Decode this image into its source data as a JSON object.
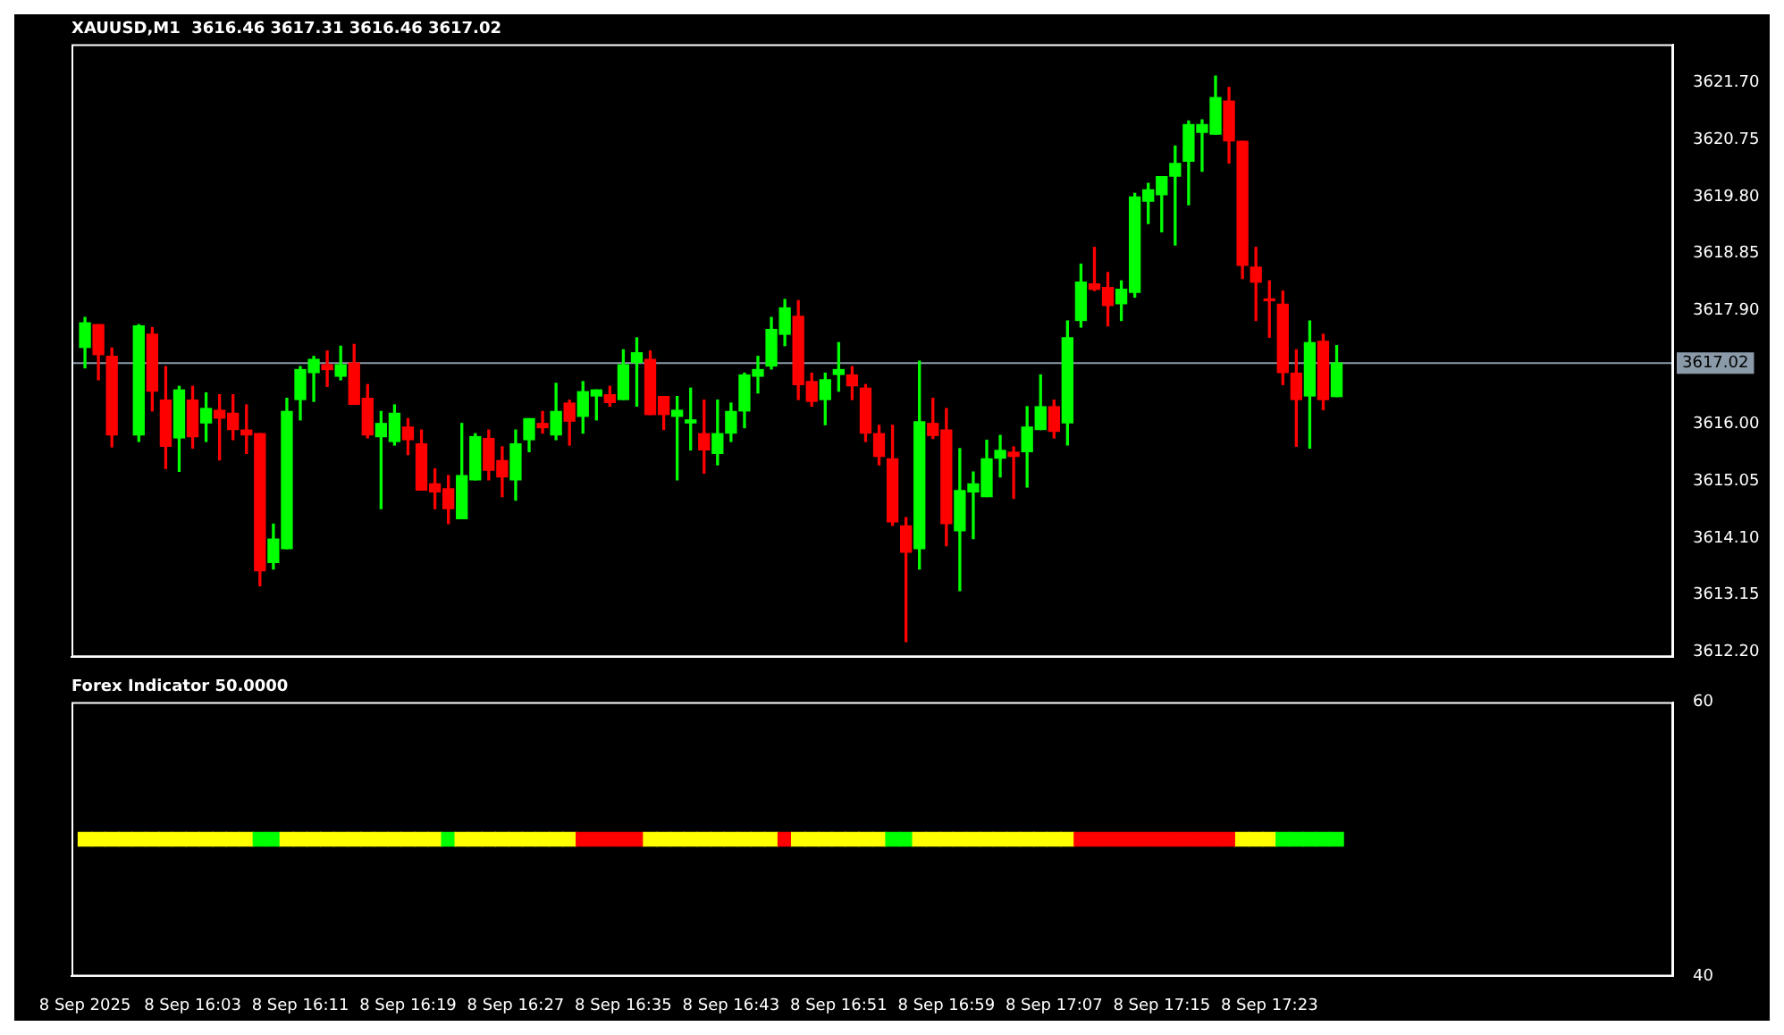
{
  "chart_data": [
    {
      "type": "candlestick",
      "title": "XAUUSD,M1  3616.46 3617.31 3616.46 3617.02",
      "x": [
        "2025-09-08T15:55",
        "2025-09-08T15:56",
        "2025-09-08T15:57",
        "2025-09-08T15:59",
        "2025-09-08T16:00",
        "2025-09-08T16:01",
        "2025-09-08T16:02",
        "2025-09-08T16:03",
        "2025-09-08T16:04",
        "2025-09-08T16:05",
        "2025-09-08T16:06",
        "2025-09-08T16:07",
        "2025-09-08T16:08",
        "2025-09-08T16:09",
        "2025-09-08T16:10",
        "2025-09-08T16:11",
        "2025-09-08T16:12",
        "2025-09-08T16:13",
        "2025-09-08T16:14",
        "2025-09-08T16:15",
        "2025-09-08T16:16",
        "2025-09-08T16:17",
        "2025-09-08T16:18",
        "2025-09-08T16:19",
        "2025-09-08T16:20",
        "2025-09-08T16:21",
        "2025-09-08T16:22",
        "2025-09-08T16:23",
        "2025-09-08T16:24",
        "2025-09-08T16:25",
        "2025-09-08T16:26",
        "2025-09-08T16:27",
        "2025-09-08T16:28",
        "2025-09-08T16:29",
        "2025-09-08T16:30",
        "2025-09-08T16:31",
        "2025-09-08T16:32",
        "2025-09-08T16:33",
        "2025-09-08T16:34",
        "2025-09-08T16:35",
        "2025-09-08T16:36",
        "2025-09-08T16:37",
        "2025-09-08T16:38",
        "2025-09-08T16:39",
        "2025-09-08T16:40",
        "2025-09-08T16:41",
        "2025-09-08T16:42",
        "2025-09-08T16:43",
        "2025-09-08T16:44",
        "2025-09-08T16:45",
        "2025-09-08T16:46",
        "2025-09-08T16:47",
        "2025-09-08T16:48",
        "2025-09-08T16:49",
        "2025-09-08T16:50",
        "2025-09-08T16:51",
        "2025-09-08T16:52",
        "2025-09-08T16:53",
        "2025-09-08T16:54",
        "2025-09-08T16:55",
        "2025-09-08T16:56",
        "2025-09-08T16:57",
        "2025-09-08T16:58",
        "2025-09-08T16:59",
        "2025-09-08T17:00",
        "2025-09-08T17:01",
        "2025-09-08T17:02",
        "2025-09-08T17:03",
        "2025-09-08T17:04",
        "2025-09-08T17:05",
        "2025-09-08T17:06",
        "2025-09-08T17:07",
        "2025-09-08T17:08",
        "2025-09-08T17:09",
        "2025-09-08T17:10",
        "2025-09-08T17:11",
        "2025-09-08T17:12",
        "2025-09-08T17:13",
        "2025-09-08T17:14",
        "2025-09-08T17:15",
        "2025-09-08T17:16",
        "2025-09-08T17:17",
        "2025-09-08T17:18",
        "2025-09-08T17:19",
        "2025-09-08T17:20",
        "2025-09-08T17:21",
        "2025-09-08T17:22",
        "2025-09-08T17:23",
        "2025-09-08T17:24",
        "2025-09-08T17:25",
        "2025-09-08T17:26",
        "2025-09-08T17:27",
        "2025-09-08T17:28"
      ],
      "ohlc": [
        [
          3617.28,
          3617.78,
          3616.94,
          3617.69
        ],
        [
          3617.66,
          3617.66,
          3616.74,
          3617.16
        ],
        [
          3617.13,
          3617.27,
          3615.62,
          3615.82
        ],
        [
          3615.82,
          3617.66,
          3615.71,
          3617.64
        ],
        [
          3617.5,
          3617.61,
          3616.22,
          3616.55
        ],
        [
          3616.4,
          3616.96,
          3615.26,
          3615.63
        ],
        [
          3615.77,
          3616.63,
          3615.21,
          3616.57
        ],
        [
          3616.4,
          3616.63,
          3615.6,
          3615.79
        ],
        [
          3616.02,
          3616.52,
          3615.71,
          3616.26
        ],
        [
          3616.23,
          3616.49,
          3615.4,
          3616.1
        ],
        [
          3616.18,
          3616.49,
          3615.74,
          3615.91
        ],
        [
          3615.9,
          3616.32,
          3615.51,
          3615.82
        ],
        [
          3615.84,
          3615.84,
          3613.3,
          3613.55
        ],
        [
          3613.69,
          3614.33,
          3613.58,
          3614.08
        ],
        [
          3613.92,
          3616.43,
          3613.92,
          3616.21
        ],
        [
          3616.41,
          3616.96,
          3616.07,
          3616.91
        ],
        [
          3616.86,
          3617.13,
          3616.38,
          3617.08
        ],
        [
          3616.99,
          3617.22,
          3616.63,
          3616.91
        ],
        [
          3616.8,
          3617.3,
          3616.74,
          3616.99
        ],
        [
          3617.02,
          3617.33,
          3616.33,
          3616.33
        ],
        [
          3616.43,
          3616.66,
          3615.77,
          3615.82
        ],
        [
          3615.79,
          3616.21,
          3614.59,
          3616.01
        ],
        [
          3615.71,
          3616.32,
          3615.65,
          3616.18
        ],
        [
          3615.95,
          3616.09,
          3615.49,
          3615.74
        ],
        [
          3615.67,
          3615.9,
          3614.9,
          3614.9
        ],
        [
          3615.0,
          3615.25,
          3614.59,
          3614.87
        ],
        [
          3614.92,
          3615.14,
          3614.34,
          3614.59
        ],
        [
          3614.42,
          3616.01,
          3614.42,
          3615.14
        ],
        [
          3615.07,
          3615.84,
          3615.07,
          3615.79
        ],
        [
          3615.76,
          3615.9,
          3615.07,
          3615.23
        ],
        [
          3615.39,
          3615.62,
          3614.79,
          3615.12
        ],
        [
          3615.07,
          3615.9,
          3614.73,
          3615.67
        ],
        [
          3615.74,
          3616.09,
          3615.54,
          3616.09
        ],
        [
          3616.01,
          3616.21,
          3615.85,
          3615.94
        ],
        [
          3615.82,
          3616.68,
          3615.74,
          3616.21
        ],
        [
          3616.35,
          3616.4,
          3615.65,
          3616.05
        ],
        [
          3616.13,
          3616.71,
          3615.85,
          3616.54
        ],
        [
          3616.47,
          3616.57,
          3616.07,
          3616.57
        ],
        [
          3616.49,
          3616.63,
          3616.3,
          3616.36
        ],
        [
          3616.41,
          3617.24,
          3616.41,
          3616.99
        ],
        [
          3617.03,
          3617.44,
          3616.3,
          3617.19
        ],
        [
          3617.08,
          3617.22,
          3616.16,
          3616.16
        ],
        [
          3616.46,
          3616.46,
          3615.91,
          3616.16
        ],
        [
          3616.13,
          3616.46,
          3615.07,
          3616.23
        ],
        [
          3616.02,
          3616.6,
          3615.57,
          3616.07
        ],
        [
          3615.84,
          3616.4,
          3615.18,
          3615.57
        ],
        [
          3615.51,
          3616.4,
          3615.32,
          3615.84
        ],
        [
          3615.85,
          3616.35,
          3615.71,
          3616.21
        ],
        [
          3616.22,
          3616.85,
          3615.94,
          3616.82
        ],
        [
          3616.8,
          3617.13,
          3616.52,
          3616.91
        ],
        [
          3616.97,
          3617.78,
          3616.92,
          3617.58
        ],
        [
          3617.5,
          3618.08,
          3617.31,
          3617.94
        ],
        [
          3617.8,
          3618.06,
          3616.41,
          3616.66
        ],
        [
          3616.71,
          3616.85,
          3616.3,
          3616.38
        ],
        [
          3616.41,
          3616.85,
          3615.99,
          3616.74
        ],
        [
          3616.83,
          3617.36,
          3616.55,
          3616.91
        ],
        [
          3616.82,
          3616.96,
          3616.41,
          3616.64
        ],
        [
          3616.6,
          3616.66,
          3615.71,
          3615.85
        ],
        [
          3615.84,
          3615.98,
          3615.32,
          3615.46
        ],
        [
          3615.42,
          3615.98,
          3614.31,
          3614.37
        ],
        [
          3614.3,
          3614.44,
          3612.37,
          3613.86
        ],
        [
          3613.92,
          3617.05,
          3613.58,
          3616.04
        ],
        [
          3616.01,
          3616.43,
          3615.76,
          3615.81
        ],
        [
          3615.9,
          3616.26,
          3613.97,
          3614.34
        ],
        [
          3614.22,
          3615.59,
          3613.22,
          3614.89
        ],
        [
          3614.87,
          3615.2,
          3614.09,
          3615.0
        ],
        [
          3614.79,
          3615.73,
          3614.79,
          3615.42
        ],
        [
          3615.43,
          3615.81,
          3615.12,
          3615.56
        ],
        [
          3615.53,
          3615.62,
          3614.76,
          3615.46
        ],
        [
          3615.54,
          3616.29,
          3614.95,
          3615.95
        ],
        [
          3615.91,
          3616.82,
          3615.91,
          3616.29
        ],
        [
          3616.29,
          3616.4,
          3615.77,
          3615.88
        ],
        [
          3616.02,
          3617.72,
          3615.65,
          3617.44
        ],
        [
          3617.73,
          3618.67,
          3617.62,
          3618.37
        ],
        [
          3618.34,
          3618.95,
          3618.23,
          3618.25
        ],
        [
          3618.28,
          3618.53,
          3617.64,
          3617.98
        ],
        [
          3618.01,
          3618.39,
          3617.73,
          3618.25
        ],
        [
          3618.2,
          3619.85,
          3618.12,
          3619.79
        ],
        [
          3619.72,
          3620.02,
          3619.35,
          3619.91
        ],
        [
          3619.83,
          3620.13,
          3619.21,
          3620.13
        ],
        [
          3620.14,
          3620.64,
          3618.99,
          3620.35
        ],
        [
          3620.39,
          3621.06,
          3619.66,
          3621.0
        ],
        [
          3620.87,
          3621.08,
          3620.22,
          3621.0
        ],
        [
          3620.84,
          3621.81,
          3620.84,
          3621.45
        ],
        [
          3621.39,
          3621.62,
          3620.36,
          3620.73
        ],
        [
          3620.72,
          3620.72,
          3618.43,
          3618.65
        ],
        [
          3618.62,
          3618.95,
          3617.73,
          3618.37
        ],
        [
          3618.06,
          3618.39,
          3617.45,
          3618.06
        ],
        [
          3618.0,
          3618.22,
          3616.66,
          3616.86
        ],
        [
          3616.85,
          3617.24,
          3615.63,
          3616.41
        ],
        [
          3616.47,
          3617.72,
          3615.6,
          3617.36
        ],
        [
          3617.38,
          3617.5,
          3616.24,
          3616.41
        ],
        [
          3616.46,
          3617.31,
          3616.46,
          3617.02
        ]
      ],
      "colors": [
        "#00ff00",
        "#ff0000",
        "#ff0000",
        "#00ff00",
        "#ff0000",
        "#ff0000",
        "#00ff00",
        "#ff0000",
        "#00ff00",
        "#ff0000",
        "#ff0000",
        "#ff0000",
        "#ff0000",
        "#00ff00",
        "#00ff00",
        "#00ff00",
        "#00ff00",
        "#ff0000",
        "#00ff00",
        "#ff0000",
        "#ff0000",
        "#00ff00",
        "#00ff00",
        "#ff0000",
        "#ff0000",
        "#ff0000",
        "#ff0000",
        "#00ff00",
        "#00ff00",
        "#ff0000",
        "#ff0000",
        "#00ff00",
        "#00ff00",
        "#ff0000",
        "#00ff00",
        "#ff0000",
        "#00ff00",
        "#00ff00",
        "#ff0000",
        "#00ff00",
        "#00ff00",
        "#ff0000",
        "#ff0000",
        "#00ff00",
        "#00ff00",
        "#ff0000",
        "#00ff00",
        "#00ff00",
        "#00ff00",
        "#00ff00",
        "#00ff00",
        "#00ff00",
        "#ff0000",
        "#ff0000",
        "#00ff00",
        "#00ff00",
        "#ff0000",
        "#ff0000",
        "#ff0000",
        "#ff0000",
        "#ff0000",
        "#00ff00",
        "#ff0000",
        "#ff0000",
        "#00ff00",
        "#00ff00",
        "#00ff00",
        "#00ff00",
        "#ff0000",
        "#00ff00",
        "#00ff00",
        "#ff0000",
        "#00ff00",
        "#00ff00",
        "#ff0000",
        "#ff0000",
        "#00ff00",
        "#00ff00",
        "#00ff00",
        "#00ff00",
        "#00ff00",
        "#00ff00",
        "#00ff00",
        "#00ff00",
        "#ff0000",
        "#ff0000",
        "#ff0000",
        "#ff0000",
        "#ff0000",
        "#ff0000",
        "#00ff00",
        "#ff0000",
        "#00ff00"
      ],
      "xlim": [
        "2025-09-08T15:54",
        "2025-09-08T17:53"
      ],
      "ylim": [
        3612.11,
        3622.34
      ],
      "yticks": [
        {
          "value": 3612.2,
          "label": "3612.20"
        },
        {
          "value": 3613.15,
          "label": "3613.15"
        },
        {
          "value": 3614.1,
          "label": "3614.10"
        },
        {
          "value": 3615.05,
          "label": "3615.05"
        },
        {
          "value": 3616.0,
          "label": "3616.00"
        },
        {
          "value": 3617.9,
          "label": "3617.90"
        },
        {
          "value": 3618.85,
          "label": "3618.85"
        },
        {
          "value": 3619.8,
          "label": "3619.80"
        },
        {
          "value": 3620.75,
          "label": "3620.75"
        },
        {
          "value": 3621.7,
          "label": "3621.70"
        }
      ],
      "ref_lines": [
        {
          "axis": "y",
          "value": 3617.02,
          "label": "3617.02",
          "color": "#8a9aa8"
        }
      ],
      "tick_labels": "y"
    },
    {
      "type": "scatter",
      "title": "Forex Indicator 50.0000",
      "marker": "square",
      "x": [
        "2025-09-08T15:55",
        "2025-09-08T15:56",
        "2025-09-08T15:57",
        "2025-09-08T15:58",
        "2025-09-08T15:59",
        "2025-09-08T16:00",
        "2025-09-08T16:01",
        "2025-09-08T16:02",
        "2025-09-08T16:03",
        "2025-09-08T16:04",
        "2025-09-08T16:05",
        "2025-09-08T16:06",
        "2025-09-08T16:07",
        "2025-09-08T16:08",
        "2025-09-08T16:09",
        "2025-09-08T16:10",
        "2025-09-08T16:11",
        "2025-09-08T16:12",
        "2025-09-08T16:13",
        "2025-09-08T16:14",
        "2025-09-08T16:15",
        "2025-09-08T16:16",
        "2025-09-08T16:17",
        "2025-09-08T16:18",
        "2025-09-08T16:19",
        "2025-09-08T16:20",
        "2025-09-08T16:21",
        "2025-09-08T16:22",
        "2025-09-08T16:23",
        "2025-09-08T16:24",
        "2025-09-08T16:25",
        "2025-09-08T16:26",
        "2025-09-08T16:27",
        "2025-09-08T16:28",
        "2025-09-08T16:29",
        "2025-09-08T16:30",
        "2025-09-08T16:31",
        "2025-09-08T16:32",
        "2025-09-08T16:33",
        "2025-09-08T16:34",
        "2025-09-08T16:35",
        "2025-09-08T16:36",
        "2025-09-08T16:37",
        "2025-09-08T16:38",
        "2025-09-08T16:39",
        "2025-09-08T16:40",
        "2025-09-08T16:41",
        "2025-09-08T16:42",
        "2025-09-08T16:43",
        "2025-09-08T16:44",
        "2025-09-08T16:45",
        "2025-09-08T16:46",
        "2025-09-08T16:47",
        "2025-09-08T16:48",
        "2025-09-08T16:49",
        "2025-09-08T16:50",
        "2025-09-08T16:51",
        "2025-09-08T16:52",
        "2025-09-08T16:53",
        "2025-09-08T16:54",
        "2025-09-08T16:55",
        "2025-09-08T16:56",
        "2025-09-08T16:57",
        "2025-09-08T16:58",
        "2025-09-08T16:59",
        "2025-09-08T17:00",
        "2025-09-08T17:01",
        "2025-09-08T17:02",
        "2025-09-08T17:03",
        "2025-09-08T17:04",
        "2025-09-08T17:05",
        "2025-09-08T17:06",
        "2025-09-08T17:07",
        "2025-09-08T17:08",
        "2025-09-08T17:09",
        "2025-09-08T17:10",
        "2025-09-08T17:11",
        "2025-09-08T17:12",
        "2025-09-08T17:13",
        "2025-09-08T17:14",
        "2025-09-08T17:15",
        "2025-09-08T17:16",
        "2025-09-08T17:17",
        "2025-09-08T17:18",
        "2025-09-08T17:19",
        "2025-09-08T17:20",
        "2025-09-08T17:21",
        "2025-09-08T17:22",
        "2025-09-08T17:23",
        "2025-09-08T17:24",
        "2025-09-08T17:25",
        "2025-09-08T17:26",
        "2025-09-08T17:27",
        "2025-09-08T17:28"
      ],
      "values": [
        50,
        50,
        50,
        50,
        50,
        50,
        50,
        50,
        50,
        50,
        50,
        50,
        50,
        50,
        50,
        50,
        50,
        50,
        50,
        50,
        50,
        50,
        50,
        50,
        50,
        50,
        50,
        50,
        50,
        50,
        50,
        50,
        50,
        50,
        50,
        50,
        50,
        50,
        50,
        50,
        50,
        50,
        50,
        50,
        50,
        50,
        50,
        50,
        50,
        50,
        50,
        50,
        50,
        50,
        50,
        50,
        50,
        50,
        50,
        50,
        50,
        50,
        50,
        50,
        50,
        50,
        50,
        50,
        50,
        50,
        50,
        50,
        50,
        50,
        50,
        50,
        50,
        50,
        50,
        50,
        50,
        50,
        50,
        50,
        50,
        50,
        50,
        50,
        50,
        50,
        50,
        50,
        50,
        50
      ],
      "colors": [
        "#ffff00",
        "#ffff00",
        "#ffff00",
        "#ffff00",
        "#ffff00",
        "#ffff00",
        "#ffff00",
        "#ffff00",
        "#ffff00",
        "#ffff00",
        "#ffff00",
        "#ffff00",
        "#ffff00",
        "#00ff00",
        "#00ff00",
        "#ffff00",
        "#ffff00",
        "#ffff00",
        "#ffff00",
        "#ffff00",
        "#ffff00",
        "#ffff00",
        "#ffff00",
        "#ffff00",
        "#ffff00",
        "#ffff00",
        "#ffff00",
        "#00ff00",
        "#ffff00",
        "#ffff00",
        "#ffff00",
        "#ffff00",
        "#ffff00",
        "#ffff00",
        "#ffff00",
        "#ffff00",
        "#ffff00",
        "#ff0000",
        "#ff0000",
        "#ff0000",
        "#ff0000",
        "#ff0000",
        "#ffff00",
        "#ffff00",
        "#ffff00",
        "#ffff00",
        "#ffff00",
        "#ffff00",
        "#ffff00",
        "#ffff00",
        "#ffff00",
        "#ffff00",
        "#ff0000",
        "#ffff00",
        "#ffff00",
        "#ffff00",
        "#ffff00",
        "#ffff00",
        "#ffff00",
        "#ffff00",
        "#00ff00",
        "#00ff00",
        "#ffff00",
        "#ffff00",
        "#ffff00",
        "#ffff00",
        "#ffff00",
        "#ffff00",
        "#ffff00",
        "#ffff00",
        "#ffff00",
        "#ffff00",
        "#ffff00",
        "#ffff00",
        "#ff0000",
        "#ff0000",
        "#ff0000",
        "#ff0000",
        "#ff0000",
        "#ff0000",
        "#ff0000",
        "#ff0000",
        "#ff0000",
        "#ff0000",
        "#ff0000",
        "#ff0000",
        "#ffff00",
        "#ffff00",
        "#ffff00",
        "#00ff00",
        "#00ff00",
        "#00ff00",
        "#00ff00",
        "#00ff00"
      ],
      "xlim": [
        "2025-09-08T15:54",
        "2025-09-08T17:53"
      ],
      "xticks": [
        {
          "value": "2025-09-08T15:55",
          "label": "8 Sep 2025"
        },
        {
          "value": "2025-09-08T16:03",
          "label": "8 Sep 16:03"
        },
        {
          "value": "2025-09-08T16:11",
          "label": "8 Sep 16:11"
        },
        {
          "value": "2025-09-08T16:19",
          "label": "8 Sep 16:19"
        },
        {
          "value": "2025-09-08T16:27",
          "label": "8 Sep 16:27"
        },
        {
          "value": "2025-09-08T16:35",
          "label": "8 Sep 16:35"
        },
        {
          "value": "2025-09-08T16:43",
          "label": "8 Sep 16:43"
        },
        {
          "value": "2025-09-08T16:51",
          "label": "8 Sep 16:51"
        },
        {
          "value": "2025-09-08T16:59",
          "label": "8 Sep 16:59"
        },
        {
          "value": "2025-09-08T17:07",
          "label": "8 Sep 17:07"
        },
        {
          "value": "2025-09-08T17:15",
          "label": "8 Sep 17:15"
        },
        {
          "value": "2025-09-08T17:23",
          "label": "8 Sep 17:23"
        }
      ],
      "ylim": [
        40,
        60
      ],
      "yticks": [
        40,
        60
      ]
    }
  ]
}
